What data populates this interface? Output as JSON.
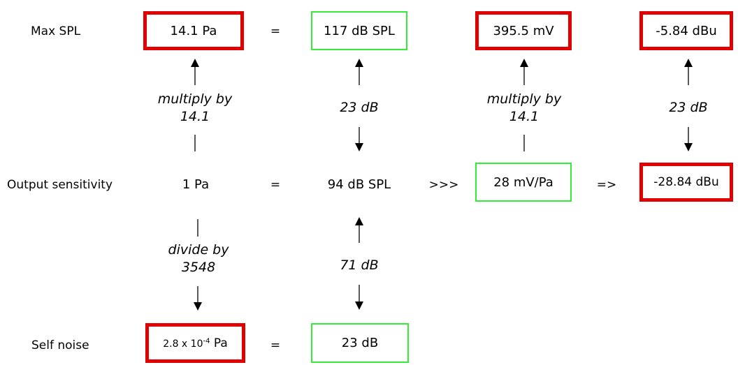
{
  "rows": {
    "max_spl": "Max SPL",
    "output_sensitivity": "Output sensitivity",
    "self_noise": "Self noise"
  },
  "row1": {
    "pa": "14.1 Pa",
    "eq": "=",
    "db_spl": "117 dB SPL",
    "mv": "395.5 mV",
    "dbu": "-5.84 dBu"
  },
  "row2": {
    "pa": "1 Pa",
    "eq": "=",
    "db_spl": "94 dB SPL",
    "op1": ">>>",
    "mv": "28 mV/Pa",
    "op2": "=>",
    "dbu": "-28.84 dBu"
  },
  "row3": {
    "pa_mantissa": "2.8 x 10",
    "pa_exp": "-4",
    "pa_unit": " Pa",
    "eq": "=",
    "db": "23 dB"
  },
  "annotations": {
    "col1_upper_line1": "multiply by",
    "col1_upper_line2": "14.1",
    "col2_upper": "23 dB",
    "col3_upper_line1": "multiply by",
    "col3_upper_line2": "14.1",
    "col4_upper": "23 dB",
    "col1_lower_line1": "divide by",
    "col1_lower_line2": "3548",
    "col2_lower": "71 dB"
  },
  "colors": {
    "red_box": "#e00000",
    "green_box": "#33ee33"
  }
}
